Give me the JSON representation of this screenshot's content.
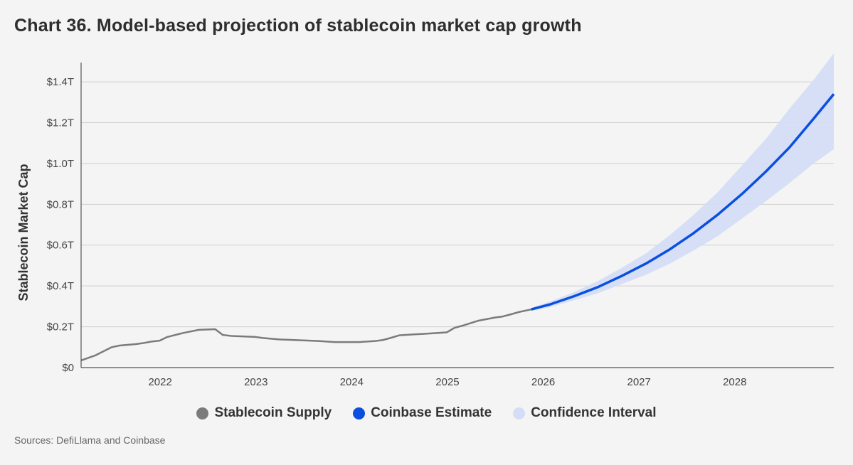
{
  "title": "Chart 36. Model-based projection of stablecoin market cap growth",
  "source": "Sources: DefiLlama and Coinbase",
  "colors": {
    "supply": "#7b7b7b",
    "estimate": "#0a4fe0",
    "interval": "#d4ddf5",
    "grid": "#cfcfcf",
    "axis": "#555555"
  },
  "chart_data": {
    "type": "line",
    "title": "Chart 36. Model-based projection of stablecoin market cap growth",
    "xlabel": "",
    "ylabel": "Stablecoin Market Cap",
    "xlim": [
      2021.1,
      2028.96
    ],
    "ylim": [
      0,
      1.55
    ],
    "y_ticks": [
      {
        "value": 0,
        "label": "$0"
      },
      {
        "value": 0.2,
        "label": "$0.2T"
      },
      {
        "value": 0.4,
        "label": "$0.4T"
      },
      {
        "value": 0.6,
        "label": "$0.6T"
      },
      {
        "value": 0.8,
        "label": "$0.8T"
      },
      {
        "value": 1.0,
        "label": "$1.0T"
      },
      {
        "value": 1.2,
        "label": "$1.2T"
      },
      {
        "value": 1.4,
        "label": "$1.4T"
      }
    ],
    "x_ticks": [
      {
        "value": 2022.0,
        "label": "2022"
      },
      {
        "value": 2023.0,
        "label": "2023"
      },
      {
        "value": 2024.0,
        "label": "2024"
      },
      {
        "value": 2025.0,
        "label": "2025"
      },
      {
        "value": 2026.0,
        "label": "2026"
      },
      {
        "value": 2027.0,
        "label": "2027"
      },
      {
        "value": 2028.0,
        "label": "2028"
      }
    ],
    "grid": true,
    "legend": "bottom-center",
    "series": [
      {
        "name": "Stablecoin Supply",
        "kind": "line",
        "points": [
          [
            2021.1,
            0.035
          ],
          [
            2021.25,
            0.06
          ],
          [
            2021.42,
            0.1
          ],
          [
            2021.5,
            0.108
          ],
          [
            2021.67,
            0.115
          ],
          [
            2021.75,
            0.12
          ],
          [
            2021.83,
            0.127
          ],
          [
            2021.92,
            0.132
          ],
          [
            2022.0,
            0.15
          ],
          [
            2022.17,
            0.17
          ],
          [
            2022.33,
            0.185
          ],
          [
            2022.5,
            0.188
          ],
          [
            2022.58,
            0.16
          ],
          [
            2022.67,
            0.155
          ],
          [
            2022.92,
            0.15
          ],
          [
            2023.0,
            0.145
          ],
          [
            2023.17,
            0.138
          ],
          [
            2023.33,
            0.135
          ],
          [
            2023.58,
            0.13
          ],
          [
            2023.75,
            0.125
          ],
          [
            2024.0,
            0.125
          ],
          [
            2024.17,
            0.13
          ],
          [
            2024.25,
            0.135
          ],
          [
            2024.33,
            0.145
          ],
          [
            2024.42,
            0.158
          ],
          [
            2024.58,
            0.163
          ],
          [
            2024.67,
            0.165
          ],
          [
            2024.83,
            0.17
          ],
          [
            2024.92,
            0.173
          ],
          [
            2025.0,
            0.195
          ],
          [
            2025.08,
            0.205
          ],
          [
            2025.25,
            0.23
          ],
          [
            2025.42,
            0.245
          ],
          [
            2025.5,
            0.25
          ],
          [
            2025.58,
            0.26
          ],
          [
            2025.67,
            0.272
          ],
          [
            2025.8,
            0.285
          ]
        ]
      },
      {
        "name": "Coinbase Estimate",
        "kind": "line",
        "points": [
          [
            2025.8,
            0.285
          ],
          [
            2026.0,
            0.31
          ],
          [
            2026.25,
            0.35
          ],
          [
            2026.5,
            0.395
          ],
          [
            2026.75,
            0.45
          ],
          [
            2027.0,
            0.51
          ],
          [
            2027.25,
            0.58
          ],
          [
            2027.5,
            0.66
          ],
          [
            2027.75,
            0.75
          ],
          [
            2028.0,
            0.85
          ],
          [
            2028.25,
            0.96
          ],
          [
            2028.5,
            1.08
          ],
          [
            2028.75,
            1.22
          ],
          [
            2028.96,
            1.34
          ]
        ]
      },
      {
        "name": "Confidence Interval",
        "kind": "band",
        "upper": [
          [
            2025.8,
            0.292
          ],
          [
            2026.0,
            0.325
          ],
          [
            2026.25,
            0.37
          ],
          [
            2026.5,
            0.425
          ],
          [
            2026.75,
            0.49
          ],
          [
            2027.0,
            0.56
          ],
          [
            2027.25,
            0.65
          ],
          [
            2027.5,
            0.75
          ],
          [
            2027.75,
            0.86
          ],
          [
            2028.0,
            0.99
          ],
          [
            2028.25,
            1.12
          ],
          [
            2028.5,
            1.27
          ],
          [
            2028.75,
            1.41
          ],
          [
            2028.96,
            1.54
          ]
        ],
        "lower": [
          [
            2025.8,
            0.278
          ],
          [
            2026.0,
            0.296
          ],
          [
            2026.25,
            0.33
          ],
          [
            2026.5,
            0.365
          ],
          [
            2026.75,
            0.41
          ],
          [
            2027.0,
            0.455
          ],
          [
            2027.25,
            0.51
          ],
          [
            2027.5,
            0.575
          ],
          [
            2027.75,
            0.645
          ],
          [
            2028.0,
            0.73
          ],
          [
            2028.25,
            0.815
          ],
          [
            2028.5,
            0.905
          ],
          [
            2028.75,
            1.0
          ],
          [
            2028.96,
            1.07
          ]
        ]
      }
    ]
  }
}
